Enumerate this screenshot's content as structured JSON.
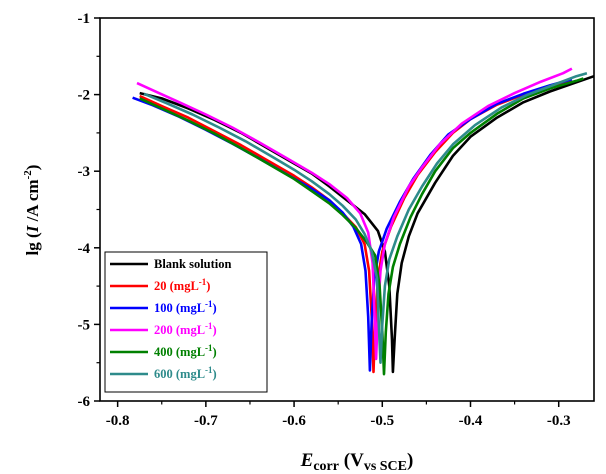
{
  "chart_data": {
    "type": "line",
    "xlim": [
      -0.82,
      -0.26
    ],
    "ylim": [
      -6,
      -1
    ],
    "x_ticks": [
      -0.8,
      -0.7,
      -0.6,
      -0.5,
      -0.4,
      -0.3
    ],
    "y_ticks": [
      -6,
      -5,
      -4,
      -3,
      -2,
      -1
    ],
    "x_tick_labels": [
      "-0.8",
      "-0.7",
      "-0.6",
      "-0.5",
      "-0.4",
      "-0.3"
    ],
    "y_tick_labels": [
      "-6",
      "-5",
      "-4",
      "-3",
      "-2",
      "-1"
    ],
    "xlabel": {
      "main": "E",
      "sub1": "corr",
      "paren_open": " (V",
      "sub2": "vs SCE",
      "paren_close": ")"
    },
    "ylabel": {
      "prefix": "lg (",
      "italic": "I",
      "mid": " /A  cm",
      "sup": "-2",
      "suffix": ")"
    },
    "legend_position": "bottom-left",
    "grid": false,
    "series": [
      {
        "name": "Blank solution",
        "name_main": "Blank solution",
        "name_sup": "",
        "name_close": "",
        "color": "#000000",
        "ecorr": -0.488,
        "ymin": -5.62,
        "left": [
          [
            -0.775,
            -1.98
          ],
          [
            -0.75,
            -2.05
          ],
          [
            -0.72,
            -2.18
          ],
          [
            -0.69,
            -2.33
          ],
          [
            -0.66,
            -2.5
          ],
          [
            -0.63,
            -2.7
          ],
          [
            -0.6,
            -2.9
          ],
          [
            -0.58,
            -3.03
          ],
          [
            -0.56,
            -3.2
          ],
          [
            -0.54,
            -3.38
          ],
          [
            -0.52,
            -3.56
          ],
          [
            -0.505,
            -3.78
          ],
          [
            -0.497,
            -4.05
          ],
          [
            -0.492,
            -4.5
          ],
          [
            -0.489,
            -5.2
          ]
        ],
        "right": [
          [
            -0.486,
            -5.2
          ],
          [
            -0.483,
            -4.6
          ],
          [
            -0.478,
            -4.2
          ],
          [
            -0.47,
            -3.85
          ],
          [
            -0.46,
            -3.55
          ],
          [
            -0.44,
            -3.15
          ],
          [
            -0.42,
            -2.8
          ],
          [
            -0.4,
            -2.55
          ],
          [
            -0.37,
            -2.3
          ],
          [
            -0.34,
            -2.1
          ],
          [
            -0.31,
            -1.96
          ],
          [
            -0.28,
            -1.84
          ],
          [
            -0.26,
            -1.76
          ]
        ]
      },
      {
        "name": "20 (mgL-1)",
        "name_main": "20 (mgL",
        "name_sup": "-1",
        "name_close": ")",
        "color": "#ff0000",
        "ecorr": -0.51,
        "ymin": -5.62,
        "left": [
          [
            -0.775,
            -2.02
          ],
          [
            -0.75,
            -2.15
          ],
          [
            -0.72,
            -2.3
          ],
          [
            -0.69,
            -2.48
          ],
          [
            -0.66,
            -2.66
          ],
          [
            -0.63,
            -2.86
          ],
          [
            -0.6,
            -3.06
          ],
          [
            -0.58,
            -3.21
          ],
          [
            -0.56,
            -3.38
          ],
          [
            -0.545,
            -3.55
          ],
          [
            -0.53,
            -3.73
          ],
          [
            -0.52,
            -3.95
          ],
          [
            -0.515,
            -4.3
          ],
          [
            -0.512,
            -4.9
          ]
        ],
        "right": [
          [
            -0.508,
            -4.95
          ],
          [
            -0.505,
            -4.4
          ],
          [
            -0.5,
            -4.05
          ],
          [
            -0.49,
            -3.72
          ],
          [
            -0.475,
            -3.35
          ],
          [
            -0.46,
            -3.05
          ],
          [
            -0.44,
            -2.75
          ],
          [
            -0.42,
            -2.5
          ],
          [
            -0.4,
            -2.32
          ],
          [
            -0.37,
            -2.13
          ],
          [
            -0.34,
            -2.0
          ],
          [
            -0.31,
            -1.9
          ],
          [
            -0.285,
            -1.82
          ]
        ]
      },
      {
        "name": "100 (mgL-1)",
        "name_main": "100 (mgL",
        "name_sup": "-1",
        "name_close": ")",
        "color": "#0000ff",
        "ecorr": -0.514,
        "ymin": -5.6,
        "left": [
          [
            -0.783,
            -2.04
          ],
          [
            -0.76,
            -2.14
          ],
          [
            -0.73,
            -2.29
          ],
          [
            -0.7,
            -2.46
          ],
          [
            -0.67,
            -2.64
          ],
          [
            -0.64,
            -2.83
          ],
          [
            -0.61,
            -3.03
          ],
          [
            -0.58,
            -3.23
          ],
          [
            -0.56,
            -3.38
          ],
          [
            -0.545,
            -3.54
          ],
          [
            -0.533,
            -3.72
          ],
          [
            -0.524,
            -3.95
          ],
          [
            -0.519,
            -4.3
          ],
          [
            -0.516,
            -4.9
          ]
        ],
        "right": [
          [
            -0.512,
            -4.95
          ],
          [
            -0.509,
            -4.4
          ],
          [
            -0.504,
            -4.05
          ],
          [
            -0.495,
            -3.75
          ],
          [
            -0.48,
            -3.4
          ],
          [
            -0.465,
            -3.1
          ],
          [
            -0.445,
            -2.78
          ],
          [
            -0.425,
            -2.52
          ],
          [
            -0.4,
            -2.32
          ],
          [
            -0.37,
            -2.12
          ],
          [
            -0.34,
            -1.99
          ],
          [
            -0.31,
            -1.88
          ],
          [
            -0.285,
            -1.8
          ]
        ]
      },
      {
        "name": "200 (mgL-1)",
        "name_main": "200 (mgL",
        "name_sup": "-1",
        "name_close": ")",
        "color": "#ff00ff",
        "ecorr": -0.507,
        "ymin": -5.45,
        "left": [
          [
            -0.778,
            -1.85
          ],
          [
            -0.755,
            -1.97
          ],
          [
            -0.73,
            -2.1
          ],
          [
            -0.7,
            -2.26
          ],
          [
            -0.67,
            -2.43
          ],
          [
            -0.64,
            -2.62
          ],
          [
            -0.61,
            -2.82
          ],
          [
            -0.58,
            -3.02
          ],
          [
            -0.56,
            -3.17
          ],
          [
            -0.54,
            -3.35
          ],
          [
            -0.525,
            -3.55
          ],
          [
            -0.516,
            -3.8
          ],
          [
            -0.511,
            -4.2
          ],
          [
            -0.509,
            -4.8
          ]
        ],
        "right": [
          [
            -0.505,
            -4.85
          ],
          [
            -0.502,
            -4.3
          ],
          [
            -0.497,
            -3.95
          ],
          [
            -0.487,
            -3.6
          ],
          [
            -0.47,
            -3.2
          ],
          [
            -0.455,
            -2.95
          ],
          [
            -0.435,
            -2.65
          ],
          [
            -0.41,
            -2.38
          ],
          [
            -0.38,
            -2.15
          ],
          [
            -0.35,
            -1.98
          ],
          [
            -0.32,
            -1.83
          ],
          [
            -0.295,
            -1.72
          ],
          [
            -0.285,
            -1.66
          ]
        ]
      },
      {
        "name": "400 (mgL-1)",
        "name_main": "400 (mgL",
        "name_sup": "-1",
        "name_close": ")",
        "color": "#008000",
        "ecorr": -0.498,
        "ymin": -5.65,
        "left": [
          [
            -0.775,
            -2.05
          ],
          [
            -0.75,
            -2.18
          ],
          [
            -0.72,
            -2.34
          ],
          [
            -0.69,
            -2.51
          ],
          [
            -0.66,
            -2.7
          ],
          [
            -0.63,
            -2.9
          ],
          [
            -0.6,
            -3.1
          ],
          [
            -0.58,
            -3.26
          ],
          [
            -0.56,
            -3.42
          ],
          [
            -0.545,
            -3.57
          ],
          [
            -0.53,
            -3.74
          ],
          [
            -0.518,
            -3.92
          ],
          [
            -0.508,
            -4.1
          ],
          [
            -0.503,
            -4.5
          ],
          [
            -0.5,
            -5.1
          ]
        ],
        "right": [
          [
            -0.496,
            -5.1
          ],
          [
            -0.493,
            -4.6
          ],
          [
            -0.488,
            -4.25
          ],
          [
            -0.48,
            -3.95
          ],
          [
            -0.468,
            -3.6
          ],
          [
            -0.455,
            -3.3
          ],
          [
            -0.44,
            -3.0
          ],
          [
            -0.42,
            -2.7
          ],
          [
            -0.4,
            -2.5
          ],
          [
            -0.37,
            -2.25
          ],
          [
            -0.34,
            -2.05
          ],
          [
            -0.31,
            -1.92
          ],
          [
            -0.28,
            -1.82
          ],
          [
            -0.272,
            -1.79
          ]
        ]
      },
      {
        "name": "600 (mgL-1)",
        "name_main": "600 (mgL",
        "name_sup": "-1",
        "name_close": ")",
        "color": "#2e8b8b",
        "ecorr": -0.502,
        "ymin": -5.5,
        "left": [
          [
            -0.77,
            -1.99
          ],
          [
            -0.745,
            -2.11
          ],
          [
            -0.715,
            -2.26
          ],
          [
            -0.685,
            -2.43
          ],
          [
            -0.655,
            -2.61
          ],
          [
            -0.625,
            -2.81
          ],
          [
            -0.6,
            -2.98
          ],
          [
            -0.58,
            -3.13
          ],
          [
            -0.56,
            -3.3
          ],
          [
            -0.545,
            -3.45
          ],
          [
            -0.53,
            -3.63
          ],
          [
            -0.52,
            -3.82
          ],
          [
            -0.512,
            -4.05
          ],
          [
            -0.506,
            -4.4
          ],
          [
            -0.504,
            -5.0
          ]
        ],
        "right": [
          [
            -0.5,
            -5.0
          ],
          [
            -0.497,
            -4.5
          ],
          [
            -0.492,
            -4.15
          ],
          [
            -0.483,
            -3.85
          ],
          [
            -0.47,
            -3.5
          ],
          [
            -0.455,
            -3.2
          ],
          [
            -0.438,
            -2.9
          ],
          [
            -0.42,
            -2.65
          ],
          [
            -0.395,
            -2.4
          ],
          [
            -0.365,
            -2.17
          ],
          [
            -0.335,
            -2.0
          ],
          [
            -0.305,
            -1.87
          ],
          [
            -0.28,
            -1.76
          ],
          [
            -0.268,
            -1.72
          ]
        ]
      }
    ]
  }
}
